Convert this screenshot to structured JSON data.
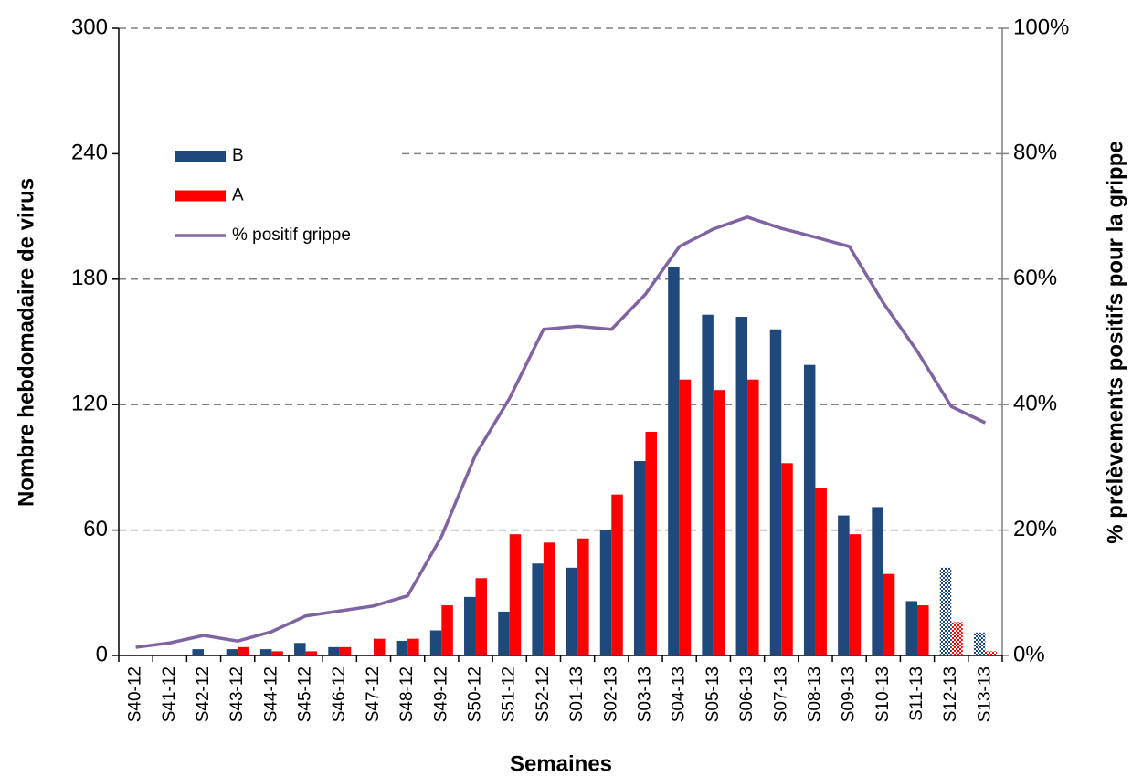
{
  "chart_data": {
    "type": "bar",
    "categories": [
      "S40-12",
      "S41-12",
      "S42-12",
      "S43-12",
      "S44-12",
      "S45-12",
      "S46-12",
      "S47-12",
      "S48-12",
      "S49-12",
      "S50-12",
      "S51-12",
      "S52-12",
      "S01-13",
      "S02-13",
      "S03-13",
      "S04-13",
      "S05-13",
      "S06-13",
      "S07-13",
      "S08-13",
      "S09-13",
      "S10-13",
      "S11-13",
      "S12-13",
      "S13-13"
    ],
    "series": [
      {
        "name": "B",
        "color": "#1f497d",
        "values": [
          0,
          0,
          3,
          3,
          3,
          6,
          4,
          0,
          7,
          12,
          28,
          21,
          44,
          42,
          60,
          93,
          186,
          163,
          162,
          156,
          139,
          67,
          71,
          26,
          42,
          11
        ]
      },
      {
        "name": "A",
        "color": "#ff0000",
        "values": [
          0,
          0,
          0,
          4,
          2,
          2,
          4,
          8,
          8,
          24,
          37,
          58,
          54,
          56,
          77,
          107,
          132,
          127,
          132,
          92,
          80,
          58,
          39,
          24,
          16,
          2
        ]
      },
      {
        "name": "% positif grippe",
        "color": "#8064a2",
        "type": "line",
        "axis": "y2",
        "values": [
          1.3,
          2,
          3.2,
          2.3,
          3.8,
          6.3,
          7.1,
          7.9,
          9.5,
          19,
          32,
          41,
          52,
          52.5,
          52,
          57.6,
          65.2,
          68,
          69.9,
          68.1,
          66.7,
          65.2,
          56.2,
          48.5,
          39.7,
          37.1
        ]
      }
    ],
    "hatched": [
      false,
      false,
      false,
      false,
      false,
      false,
      false,
      false,
      false,
      false,
      false,
      false,
      false,
      false,
      false,
      false,
      false,
      false,
      false,
      false,
      false,
      false,
      false,
      false,
      true,
      true
    ],
    "ylim": [
      0,
      300
    ],
    "yticks": [
      0,
      60,
      120,
      180,
      240,
      300
    ],
    "y2lim": [
      0,
      100
    ],
    "y2ticks": [
      {
        "value": 0,
        "label": "0%"
      },
      {
        "value": 20,
        "label": "20%"
      },
      {
        "value": 40,
        "label": "40%"
      },
      {
        "value": 60,
        "label": "60%"
      },
      {
        "value": 80,
        "label": "80%"
      },
      {
        "value": 100,
        "label": "100%"
      }
    ],
    "ylabel": "Nombre hebdomadaire de virus",
    "y2label": "% prélèvements positifs pour la grippe",
    "xlabel": "Semaines",
    "grid": true,
    "legend": "upper left"
  }
}
